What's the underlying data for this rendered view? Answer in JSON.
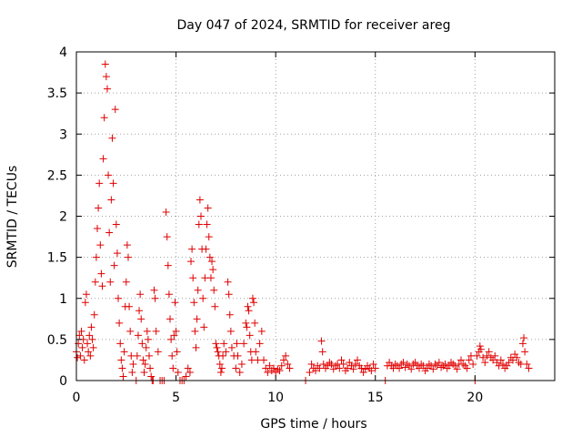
{
  "chart_data": {
    "type": "scatter",
    "title": "Day 047 of 2024, SRMTID for receiver areg",
    "xlabel": "GPS time / hours",
    "ylabel": "SRMTID / TECUs",
    "xlim": [
      0,
      24
    ],
    "ylim": [
      0,
      4
    ],
    "xticks": [
      0,
      5,
      10,
      15,
      20
    ],
    "xtick_labels": [
      "0",
      "5",
      "10",
      "15",
      "20"
    ],
    "yticks": [
      0,
      0.5,
      1,
      1.5,
      2,
      2.5,
      3,
      3.5,
      4
    ],
    "ytick_labels": [
      "0",
      "0.5",
      "1",
      "1.5",
      "2",
      "2.5",
      "3",
      "3.5",
      "4"
    ],
    "grid": true,
    "marker": "plus",
    "series": [
      {
        "name": "SRMTID",
        "color": "#e00000",
        "points": [
          [
            0.0,
            0.35
          ],
          [
            0.05,
            0.28
          ],
          [
            0.1,
            0.45
          ],
          [
            0.15,
            0.55
          ],
          [
            0.2,
            0.3
          ],
          [
            0.25,
            0.6
          ],
          [
            0.3,
            0.4
          ],
          [
            0.35,
            0.5
          ],
          [
            0.4,
            0.25
          ],
          [
            0.45,
            0.95
          ],
          [
            0.5,
            1.05
          ],
          [
            0.55,
            0.45
          ],
          [
            0.6,
            0.35
          ],
          [
            0.65,
            0.55
          ],
          [
            0.7,
            0.3
          ],
          [
            0.75,
            0.65
          ],
          [
            0.8,
            0.5
          ],
          [
            0.85,
            0.4
          ],
          [
            0.9,
            0.8
          ],
          [
            0.95,
            1.2
          ],
          [
            1.0,
            1.5
          ],
          [
            1.05,
            1.85
          ],
          [
            1.1,
            2.1
          ],
          [
            1.15,
            2.4
          ],
          [
            1.2,
            1.65
          ],
          [
            1.25,
            1.3
          ],
          [
            1.3,
            1.15
          ],
          [
            1.35,
            2.7
          ],
          [
            1.4,
            3.2
          ],
          [
            1.45,
            3.85
          ],
          [
            1.5,
            3.7
          ],
          [
            1.55,
            3.55
          ],
          [
            1.6,
            2.5
          ],
          [
            1.65,
            1.8
          ],
          [
            1.7,
            1.2
          ],
          [
            1.75,
            2.2
          ],
          [
            1.8,
            2.95
          ],
          [
            1.85,
            2.4
          ],
          [
            1.9,
            1.4
          ],
          [
            1.95,
            3.3
          ],
          [
            2.0,
            1.9
          ],
          [
            2.05,
            1.55
          ],
          [
            2.1,
            1.0
          ],
          [
            2.15,
            0.7
          ],
          [
            2.2,
            0.45
          ],
          [
            2.25,
            0.25
          ],
          [
            2.3,
            0.15
          ],
          [
            2.35,
            0.05
          ],
          [
            2.4,
            0.35
          ],
          [
            2.45,
            0.9
          ],
          [
            2.5,
            1.2
          ],
          [
            2.55,
            1.65
          ],
          [
            2.6,
            1.5
          ],
          [
            2.65,
            0.9
          ],
          [
            2.7,
            0.6
          ],
          [
            2.75,
            0.3
          ],
          [
            2.8,
            0.1
          ],
          [
            2.85,
            0.2
          ],
          [
            3.0,
            0.0
          ],
          [
            3.05,
            0.3
          ],
          [
            3.1,
            0.55
          ],
          [
            3.15,
            0.85
          ],
          [
            3.2,
            1.05
          ],
          [
            3.25,
            0.75
          ],
          [
            3.3,
            0.45
          ],
          [
            3.35,
            0.25
          ],
          [
            3.4,
            0.1
          ],
          [
            3.45,
            0.2
          ],
          [
            3.5,
            0.4
          ],
          [
            3.55,
            0.6
          ],
          [
            3.6,
            0.5
          ],
          [
            3.65,
            0.3
          ],
          [
            3.7,
            0.15
          ],
          [
            3.75,
            0.05
          ],
          [
            3.8,
            0.0
          ],
          [
            3.85,
            0.0
          ],
          [
            3.9,
            1.1
          ],
          [
            3.95,
            1.0
          ],
          [
            4.0,
            0.6
          ],
          [
            4.1,
            0.35
          ],
          [
            4.2,
            0.0
          ],
          [
            4.3,
            0.0
          ],
          [
            4.4,
            0.0
          ],
          [
            4.5,
            2.05
          ],
          [
            4.55,
            1.75
          ],
          [
            4.6,
            1.4
          ],
          [
            4.65,
            1.05
          ],
          [
            4.7,
            0.75
          ],
          [
            4.75,
            0.5
          ],
          [
            4.8,
            0.3
          ],
          [
            4.85,
            0.15
          ],
          [
            4.9,
            0.55
          ],
          [
            4.95,
            0.95
          ],
          [
            5.0,
            0.6
          ],
          [
            5.05,
            0.35
          ],
          [
            5.1,
            0.1
          ],
          [
            5.2,
            0.0
          ],
          [
            5.3,
            0.0
          ],
          [
            5.4,
            0.0
          ],
          [
            5.5,
            0.05
          ],
          [
            5.6,
            0.15
          ],
          [
            5.7,
            0.1
          ],
          [
            5.75,
            1.45
          ],
          [
            5.8,
            1.6
          ],
          [
            5.85,
            1.25
          ],
          [
            5.9,
            0.95
          ],
          [
            5.95,
            0.6
          ],
          [
            6.0,
            0.4
          ],
          [
            6.05,
            0.75
          ],
          [
            6.1,
            1.1
          ],
          [
            6.15,
            1.9
          ],
          [
            6.2,
            2.2
          ],
          [
            6.25,
            2.0
          ],
          [
            6.3,
            1.6
          ],
          [
            6.35,
            1.0
          ],
          [
            6.4,
            0.65
          ],
          [
            6.45,
            1.25
          ],
          [
            6.5,
            1.6
          ],
          [
            6.55,
            1.9
          ],
          [
            6.6,
            2.1
          ],
          [
            6.65,
            1.75
          ],
          [
            6.7,
            1.5
          ],
          [
            6.75,
            1.25
          ],
          [
            6.8,
            1.45
          ],
          [
            6.85,
            1.35
          ],
          [
            6.9,
            1.1
          ],
          [
            6.95,
            0.9
          ],
          [
            7.0,
            0.45
          ],
          [
            7.05,
            0.4
          ],
          [
            7.1,
            0.35
          ],
          [
            7.15,
            0.3
          ],
          [
            7.2,
            0.2
          ],
          [
            7.25,
            0.1
          ],
          [
            7.3,
            0.15
          ],
          [
            7.35,
            0.3
          ],
          [
            7.4,
            0.45
          ],
          [
            7.5,
            0.35
          ],
          [
            7.6,
            1.2
          ],
          [
            7.65,
            1.05
          ],
          [
            7.7,
            0.8
          ],
          [
            7.75,
            0.6
          ],
          [
            7.8,
            0.4
          ],
          [
            7.9,
            0.3
          ],
          [
            8.0,
            0.15
          ],
          [
            8.05,
            0.45
          ],
          [
            8.1,
            0.3
          ],
          [
            8.2,
            0.1
          ],
          [
            8.3,
            0.2
          ],
          [
            8.4,
            0.45
          ],
          [
            8.5,
            0.7
          ],
          [
            8.55,
            0.65
          ],
          [
            8.6,
            0.9
          ],
          [
            8.65,
            0.85
          ],
          [
            8.7,
            0.55
          ],
          [
            8.75,
            0.35
          ],
          [
            8.8,
            0.25
          ],
          [
            8.85,
            1.0
          ],
          [
            8.9,
            0.95
          ],
          [
            8.95,
            0.7
          ],
          [
            9.0,
            0.35
          ],
          [
            9.1,
            0.25
          ],
          [
            9.2,
            0.45
          ],
          [
            9.3,
            0.6
          ],
          [
            9.4,
            0.25
          ],
          [
            9.5,
            0.15
          ],
          [
            9.6,
            0.1
          ],
          [
            9.7,
            0.18
          ],
          [
            9.8,
            0.12
          ],
          [
            9.9,
            0.15
          ],
          [
            10.0,
            0.1
          ],
          [
            10.1,
            0.14
          ],
          [
            10.2,
            0.12
          ],
          [
            10.3,
            0.18
          ],
          [
            10.4,
            0.25
          ],
          [
            10.5,
            0.3
          ],
          [
            10.6,
            0.2
          ],
          [
            10.7,
            0.15
          ],
          [
            11.5,
            0.0
          ],
          [
            11.7,
            0.1
          ],
          [
            11.8,
            0.2
          ],
          [
            11.9,
            0.15
          ],
          [
            12.0,
            0.12
          ],
          [
            12.1,
            0.18
          ],
          [
            12.2,
            0.15
          ],
          [
            12.3,
            0.48
          ],
          [
            12.35,
            0.35
          ],
          [
            12.4,
            0.2
          ],
          [
            12.5,
            0.15
          ],
          [
            12.6,
            0.18
          ],
          [
            12.7,
            0.22
          ],
          [
            12.8,
            0.2
          ],
          [
            12.9,
            0.14
          ],
          [
            13.0,
            0.18
          ],
          [
            13.1,
            0.2
          ],
          [
            13.2,
            0.15
          ],
          [
            13.3,
            0.25
          ],
          [
            13.4,
            0.2
          ],
          [
            13.5,
            0.12
          ],
          [
            13.6,
            0.15
          ],
          [
            13.7,
            0.22
          ],
          [
            13.8,
            0.18
          ],
          [
            13.9,
            0.14
          ],
          [
            14.0,
            0.2
          ],
          [
            14.1,
            0.25
          ],
          [
            14.2,
            0.18
          ],
          [
            14.3,
            0.15
          ],
          [
            14.4,
            0.1
          ],
          [
            14.5,
            0.14
          ],
          [
            14.6,
            0.18
          ],
          [
            14.7,
            0.15
          ],
          [
            14.8,
            0.12
          ],
          [
            14.9,
            0.2
          ],
          [
            15.0,
            0.15
          ],
          [
            15.5,
            0.0
          ],
          [
            15.6,
            0.18
          ],
          [
            15.7,
            0.22
          ],
          [
            15.8,
            0.18
          ],
          [
            15.9,
            0.15
          ],
          [
            16.0,
            0.2
          ],
          [
            16.1,
            0.18
          ],
          [
            16.2,
            0.15
          ],
          [
            16.3,
            0.2
          ],
          [
            16.4,
            0.22
          ],
          [
            16.5,
            0.16
          ],
          [
            16.6,
            0.2
          ],
          [
            16.7,
            0.18
          ],
          [
            16.8,
            0.14
          ],
          [
            16.9,
            0.2
          ],
          [
            17.0,
            0.22
          ],
          [
            17.1,
            0.18
          ],
          [
            17.2,
            0.15
          ],
          [
            17.3,
            0.2
          ],
          [
            17.4,
            0.18
          ],
          [
            17.5,
            0.12
          ],
          [
            17.6,
            0.15
          ],
          [
            17.7,
            0.2
          ],
          [
            17.8,
            0.18
          ],
          [
            17.9,
            0.14
          ],
          [
            18.0,
            0.2
          ],
          [
            18.1,
            0.18
          ],
          [
            18.2,
            0.22
          ],
          [
            18.3,
            0.16
          ],
          [
            18.4,
            0.18
          ],
          [
            18.5,
            0.2
          ],
          [
            18.6,
            0.15
          ],
          [
            18.7,
            0.18
          ],
          [
            18.8,
            0.22
          ],
          [
            18.9,
            0.2
          ],
          [
            19.0,
            0.18
          ],
          [
            19.1,
            0.14
          ],
          [
            19.2,
            0.2
          ],
          [
            19.3,
            0.25
          ],
          [
            19.4,
            0.2
          ],
          [
            19.5,
            0.18
          ],
          [
            19.6,
            0.15
          ],
          [
            19.7,
            0.25
          ],
          [
            19.8,
            0.3
          ],
          [
            19.9,
            0.2
          ],
          [
            20.0,
            0.0
          ],
          [
            20.1,
            0.3
          ],
          [
            20.2,
            0.35
          ],
          [
            20.25,
            0.42
          ],
          [
            20.3,
            0.38
          ],
          [
            20.4,
            0.28
          ],
          [
            20.5,
            0.22
          ],
          [
            20.6,
            0.3
          ],
          [
            20.7,
            0.35
          ],
          [
            20.8,
            0.28
          ],
          [
            20.9,
            0.25
          ],
          [
            21.0,
            0.3
          ],
          [
            21.1,
            0.22
          ],
          [
            21.2,
            0.18
          ],
          [
            21.3,
            0.25
          ],
          [
            21.4,
            0.2
          ],
          [
            21.5,
            0.15
          ],
          [
            21.6,
            0.18
          ],
          [
            21.7,
            0.22
          ],
          [
            21.8,
            0.28
          ],
          [
            21.9,
            0.25
          ],
          [
            22.0,
            0.32
          ],
          [
            22.1,
            0.28
          ],
          [
            22.2,
            0.22
          ],
          [
            22.3,
            0.2
          ],
          [
            22.4,
            0.45
          ],
          [
            22.45,
            0.52
          ],
          [
            22.5,
            0.35
          ],
          [
            22.6,
            0.2
          ],
          [
            22.7,
            0.15
          ]
        ]
      }
    ]
  }
}
